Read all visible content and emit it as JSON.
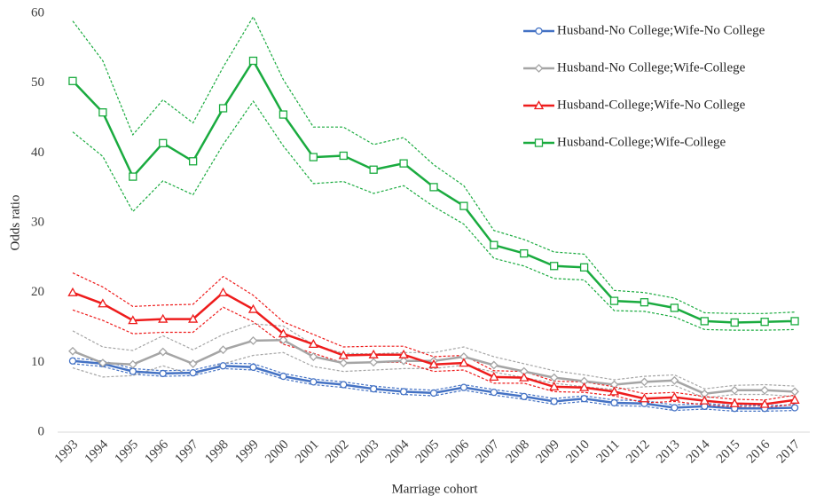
{
  "chart_data": {
    "type": "line",
    "x_label": "Marriage cohort",
    "y_label": "Odds ratio",
    "categories": [
      "1993",
      "1994",
      "1995",
      "1996",
      "1997",
      "1998",
      "1999",
      "2000",
      "2001",
      "2002",
      "2003",
      "2004",
      "2005",
      "2006",
      "2007",
      "2008",
      "2009",
      "2010",
      "2011",
      "2012",
      "2013",
      "2014",
      "2015",
      "2016",
      "2017"
    ],
    "ylim": [
      0,
      60
    ],
    "yticks": [
      0,
      10,
      20,
      30,
      40,
      50,
      60
    ],
    "grid": false,
    "legend": "top-right",
    "series": [
      {
        "name": "Husband-No College;Wife-No College",
        "color": "#4472c4",
        "marker": "circle",
        "values": [
          10.2,
          9.8,
          8.7,
          8.4,
          8.5,
          9.5,
          9.3,
          8.0,
          7.2,
          6.8,
          6.2,
          5.8,
          5.6,
          6.4,
          5.7,
          5.1,
          4.4,
          4.8,
          4.2,
          4.1,
          3.5,
          3.7,
          3.4,
          3.4,
          3.5
        ],
        "upper": [
          10.6,
          10.2,
          9.1,
          8.8,
          8.9,
          9.9,
          9.8,
          8.4,
          7.6,
          7.2,
          6.6,
          6.2,
          6.0,
          6.8,
          6.1,
          5.5,
          4.8,
          5.2,
          4.6,
          4.5,
          3.9,
          4.1,
          3.8,
          3.8,
          3.9
        ],
        "lower": [
          9.8,
          9.4,
          8.3,
          8.0,
          8.1,
          9.1,
          8.9,
          7.6,
          6.8,
          6.4,
          5.8,
          5.4,
          5.2,
          6.0,
          5.3,
          4.7,
          4.0,
          4.4,
          3.8,
          3.7,
          3.1,
          3.3,
          3.0,
          3.0,
          3.1
        ]
      },
      {
        "name": "Husband-No College;Wife-College",
        "color": "#a5a5a5",
        "marker": "diamond",
        "values": [
          11.6,
          9.9,
          9.7,
          11.5,
          9.8,
          11.8,
          13.1,
          13.2,
          10.8,
          9.9,
          10.0,
          10.2,
          10.2,
          10.8,
          9.6,
          8.7,
          7.8,
          7.3,
          6.8,
          7.2,
          7.4,
          5.5,
          6.0,
          6.0,
          5.8
        ],
        "upper": [
          14.5,
          12.2,
          11.7,
          13.8,
          11.8,
          14.0,
          15.5,
          15.2,
          12.5,
          11.3,
          11.2,
          11.4,
          11.4,
          12.2,
          10.8,
          9.8,
          8.8,
          8.2,
          7.5,
          8.0,
          8.2,
          6.2,
          6.7,
          6.8,
          6.6
        ],
        "lower": [
          9.2,
          7.9,
          8.1,
          9.5,
          8.2,
          9.8,
          11.0,
          11.4,
          9.4,
          8.7,
          8.9,
          9.1,
          9.1,
          9.6,
          8.6,
          7.8,
          7.0,
          6.5,
          6.1,
          6.5,
          6.7,
          4.9,
          5.4,
          5.4,
          5.1
        ]
      },
      {
        "name": "Husband-College;Wife-No College",
        "color": "#ee1c1c",
        "marker": "triangle",
        "values": [
          20.0,
          18.4,
          16.0,
          16.2,
          16.2,
          20.0,
          17.6,
          14.1,
          12.6,
          11.0,
          11.1,
          11.1,
          9.7,
          9.9,
          7.9,
          7.8,
          6.5,
          6.4,
          5.8,
          4.8,
          5.0,
          4.5,
          4.1,
          4.0,
          4.6
        ],
        "upper": [
          22.8,
          20.8,
          18.0,
          18.2,
          18.3,
          22.3,
          19.6,
          15.8,
          14.0,
          12.2,
          12.3,
          12.3,
          10.8,
          11.0,
          8.8,
          8.7,
          7.3,
          7.2,
          6.5,
          5.5,
          5.7,
          5.1,
          4.7,
          4.6,
          5.3
        ],
        "lower": [
          17.5,
          16.0,
          14.1,
          14.3,
          14.3,
          17.9,
          15.8,
          12.6,
          11.3,
          9.9,
          10.0,
          10.0,
          8.7,
          8.9,
          7.0,
          7.0,
          5.8,
          5.7,
          5.2,
          4.2,
          4.4,
          3.9,
          3.6,
          3.5,
          4.0
        ]
      },
      {
        "name": "Husband-College;Wife-College",
        "color": "#1aab3f",
        "marker": "square",
        "values": [
          50.3,
          45.8,
          36.6,
          41.4,
          38.8,
          46.4,
          53.2,
          45.5,
          39.4,
          39.6,
          37.6,
          38.5,
          35.1,
          32.4,
          26.8,
          25.6,
          23.8,
          23.6,
          18.8,
          18.6,
          17.8,
          15.9,
          15.7,
          15.8,
          15.9
        ],
        "upper": [
          58.9,
          53.2,
          42.6,
          47.6,
          44.3,
          52.3,
          59.5,
          50.5,
          43.7,
          43.7,
          41.2,
          42.2,
          38.3,
          35.3,
          28.9,
          27.6,
          25.8,
          25.5,
          20.3,
          20.0,
          19.2,
          17.1,
          17.0,
          17.0,
          17.2
        ],
        "lower": [
          43.0,
          39.5,
          31.6,
          36.0,
          34.0,
          41.2,
          47.4,
          41.0,
          35.6,
          35.9,
          34.2,
          35.3,
          32.3,
          29.8,
          24.9,
          23.8,
          22.0,
          21.8,
          17.4,
          17.3,
          16.5,
          14.7,
          14.6,
          14.6,
          14.7
        ]
      }
    ]
  }
}
